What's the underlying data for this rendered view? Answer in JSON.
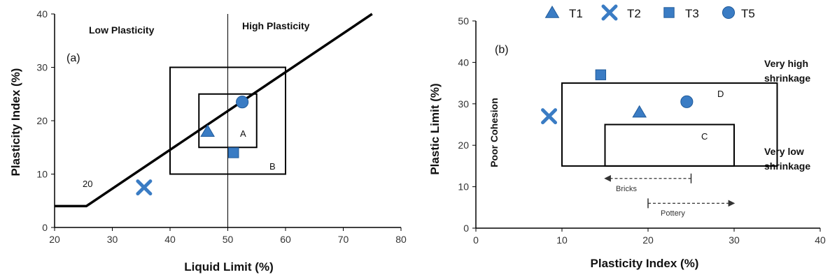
{
  "legend": {
    "items": [
      {
        "name": "T1",
        "marker": "triangle",
        "icon": "triangle-marker-icon"
      },
      {
        "name": "T2",
        "marker": "cross",
        "icon": "cross-marker-icon"
      },
      {
        "name": "T3",
        "marker": "square",
        "icon": "square-marker-icon"
      },
      {
        "name": "T5",
        "marker": "circle",
        "icon": "circle-marker-icon"
      }
    ]
  },
  "colors": {
    "marker_fill": "#3a7cc4",
    "marker_stroke": "#1f5a9a",
    "line": "#000000",
    "axis": "#000000"
  },
  "chart_data": [
    {
      "type": "scatter",
      "panel_label": "(a)",
      "xlabel": "Liquid Limit (%)",
      "ylabel": "Plasticity Index (%)",
      "xlim": [
        20,
        80
      ],
      "ylim": [
        0,
        40
      ],
      "xticks": [
        20,
        30,
        40,
        50,
        60,
        70,
        80
      ],
      "yticks": [
        0,
        10,
        20,
        30,
        40
      ],
      "grid": false,
      "region_labels": {
        "left": "Low Plasticity",
        "right": "High Plasticity"
      },
      "divider_x": 50,
      "a_line": [
        [
          20,
          4
        ],
        [
          25.5,
          4
        ],
        [
          75,
          40
        ]
      ],
      "a_line_label": "20",
      "boxes": [
        {
          "label": "A",
          "x": [
            45,
            55
          ],
          "y": [
            15,
            25
          ]
        },
        {
          "label": "B",
          "x": [
            40,
            60
          ],
          "y": [
            10,
            30
          ]
        }
      ],
      "points": [
        {
          "series": "T1",
          "x": 46.5,
          "y": 18
        },
        {
          "series": "T2",
          "x": 35.5,
          "y": 7.5
        },
        {
          "series": "T3",
          "x": 51,
          "y": 14
        },
        {
          "series": "T5",
          "x": 52.5,
          "y": 23.5
        }
      ]
    },
    {
      "type": "scatter",
      "panel_label": "(b)",
      "xlabel": "Plasticity Index (%)",
      "ylabel": "Plastic Limit (%)",
      "xlim": [
        0,
        40
      ],
      "ylim": [
        0,
        50
      ],
      "xticks": [
        0,
        10,
        20,
        30,
        40
      ],
      "yticks": [
        0,
        10,
        20,
        30,
        40,
        50
      ],
      "grid": false,
      "annotations": {
        "poor_cohesion": "Poor Cohesion",
        "very_high_1": "Very high",
        "very_high_2": "shrinkage",
        "very_low_1": "Very low",
        "very_low_2": "shrinkage",
        "bricks": "Bricks",
        "pottery": "Pottery"
      },
      "boxes": [
        {
          "label": "D",
          "x": [
            10,
            35
          ],
          "y": [
            15,
            35
          ]
        },
        {
          "label": "C",
          "x": [
            15,
            30
          ],
          "y": [
            15,
            25
          ]
        }
      ],
      "ranges": [
        {
          "label": "Bricks",
          "x": [
            15,
            25
          ],
          "y": 12
        },
        {
          "label": "Pottery",
          "x": [
            20,
            30
          ],
          "y": 6
        }
      ],
      "points": [
        {
          "series": "T1",
          "x": 19,
          "y": 28
        },
        {
          "series": "T2",
          "x": 8.5,
          "y": 27
        },
        {
          "series": "T3",
          "x": 14.5,
          "y": 37
        },
        {
          "series": "T5",
          "x": 24.5,
          "y": 30.5
        }
      ]
    }
  ]
}
